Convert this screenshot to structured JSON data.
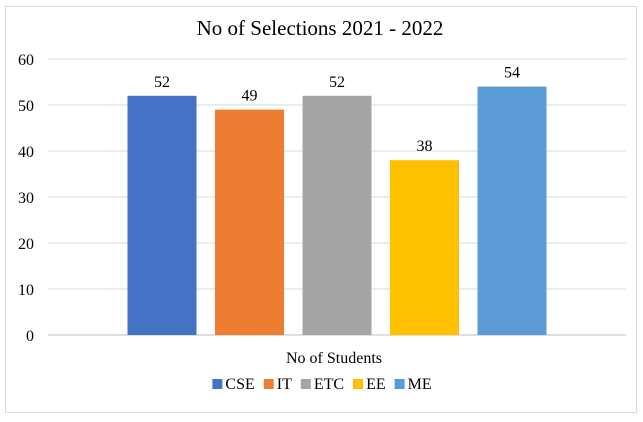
{
  "chart_data": {
    "type": "bar",
    "title": "No of Selections 2021 - 2022",
    "xlabel": "No of Students",
    "ylabel": "",
    "ylim": [
      0,
      60
    ],
    "yticks": [
      0,
      10,
      20,
      30,
      40,
      50,
      60
    ],
    "grid": true,
    "legend_position": "bottom",
    "data_labels": true,
    "series": [
      {
        "name": "CSE",
        "values": [
          52
        ],
        "color": "#4472C4"
      },
      {
        "name": "IT",
        "values": [
          49
        ],
        "color": "#ED7D31"
      },
      {
        "name": "ETC",
        "values": [
          52
        ],
        "color": "#A5A5A5"
      },
      {
        "name": "EE",
        "values": [
          38
        ],
        "color": "#FFC000"
      },
      {
        "name": "ME",
        "values": [
          54
        ],
        "color": "#5B9BD5"
      }
    ]
  }
}
